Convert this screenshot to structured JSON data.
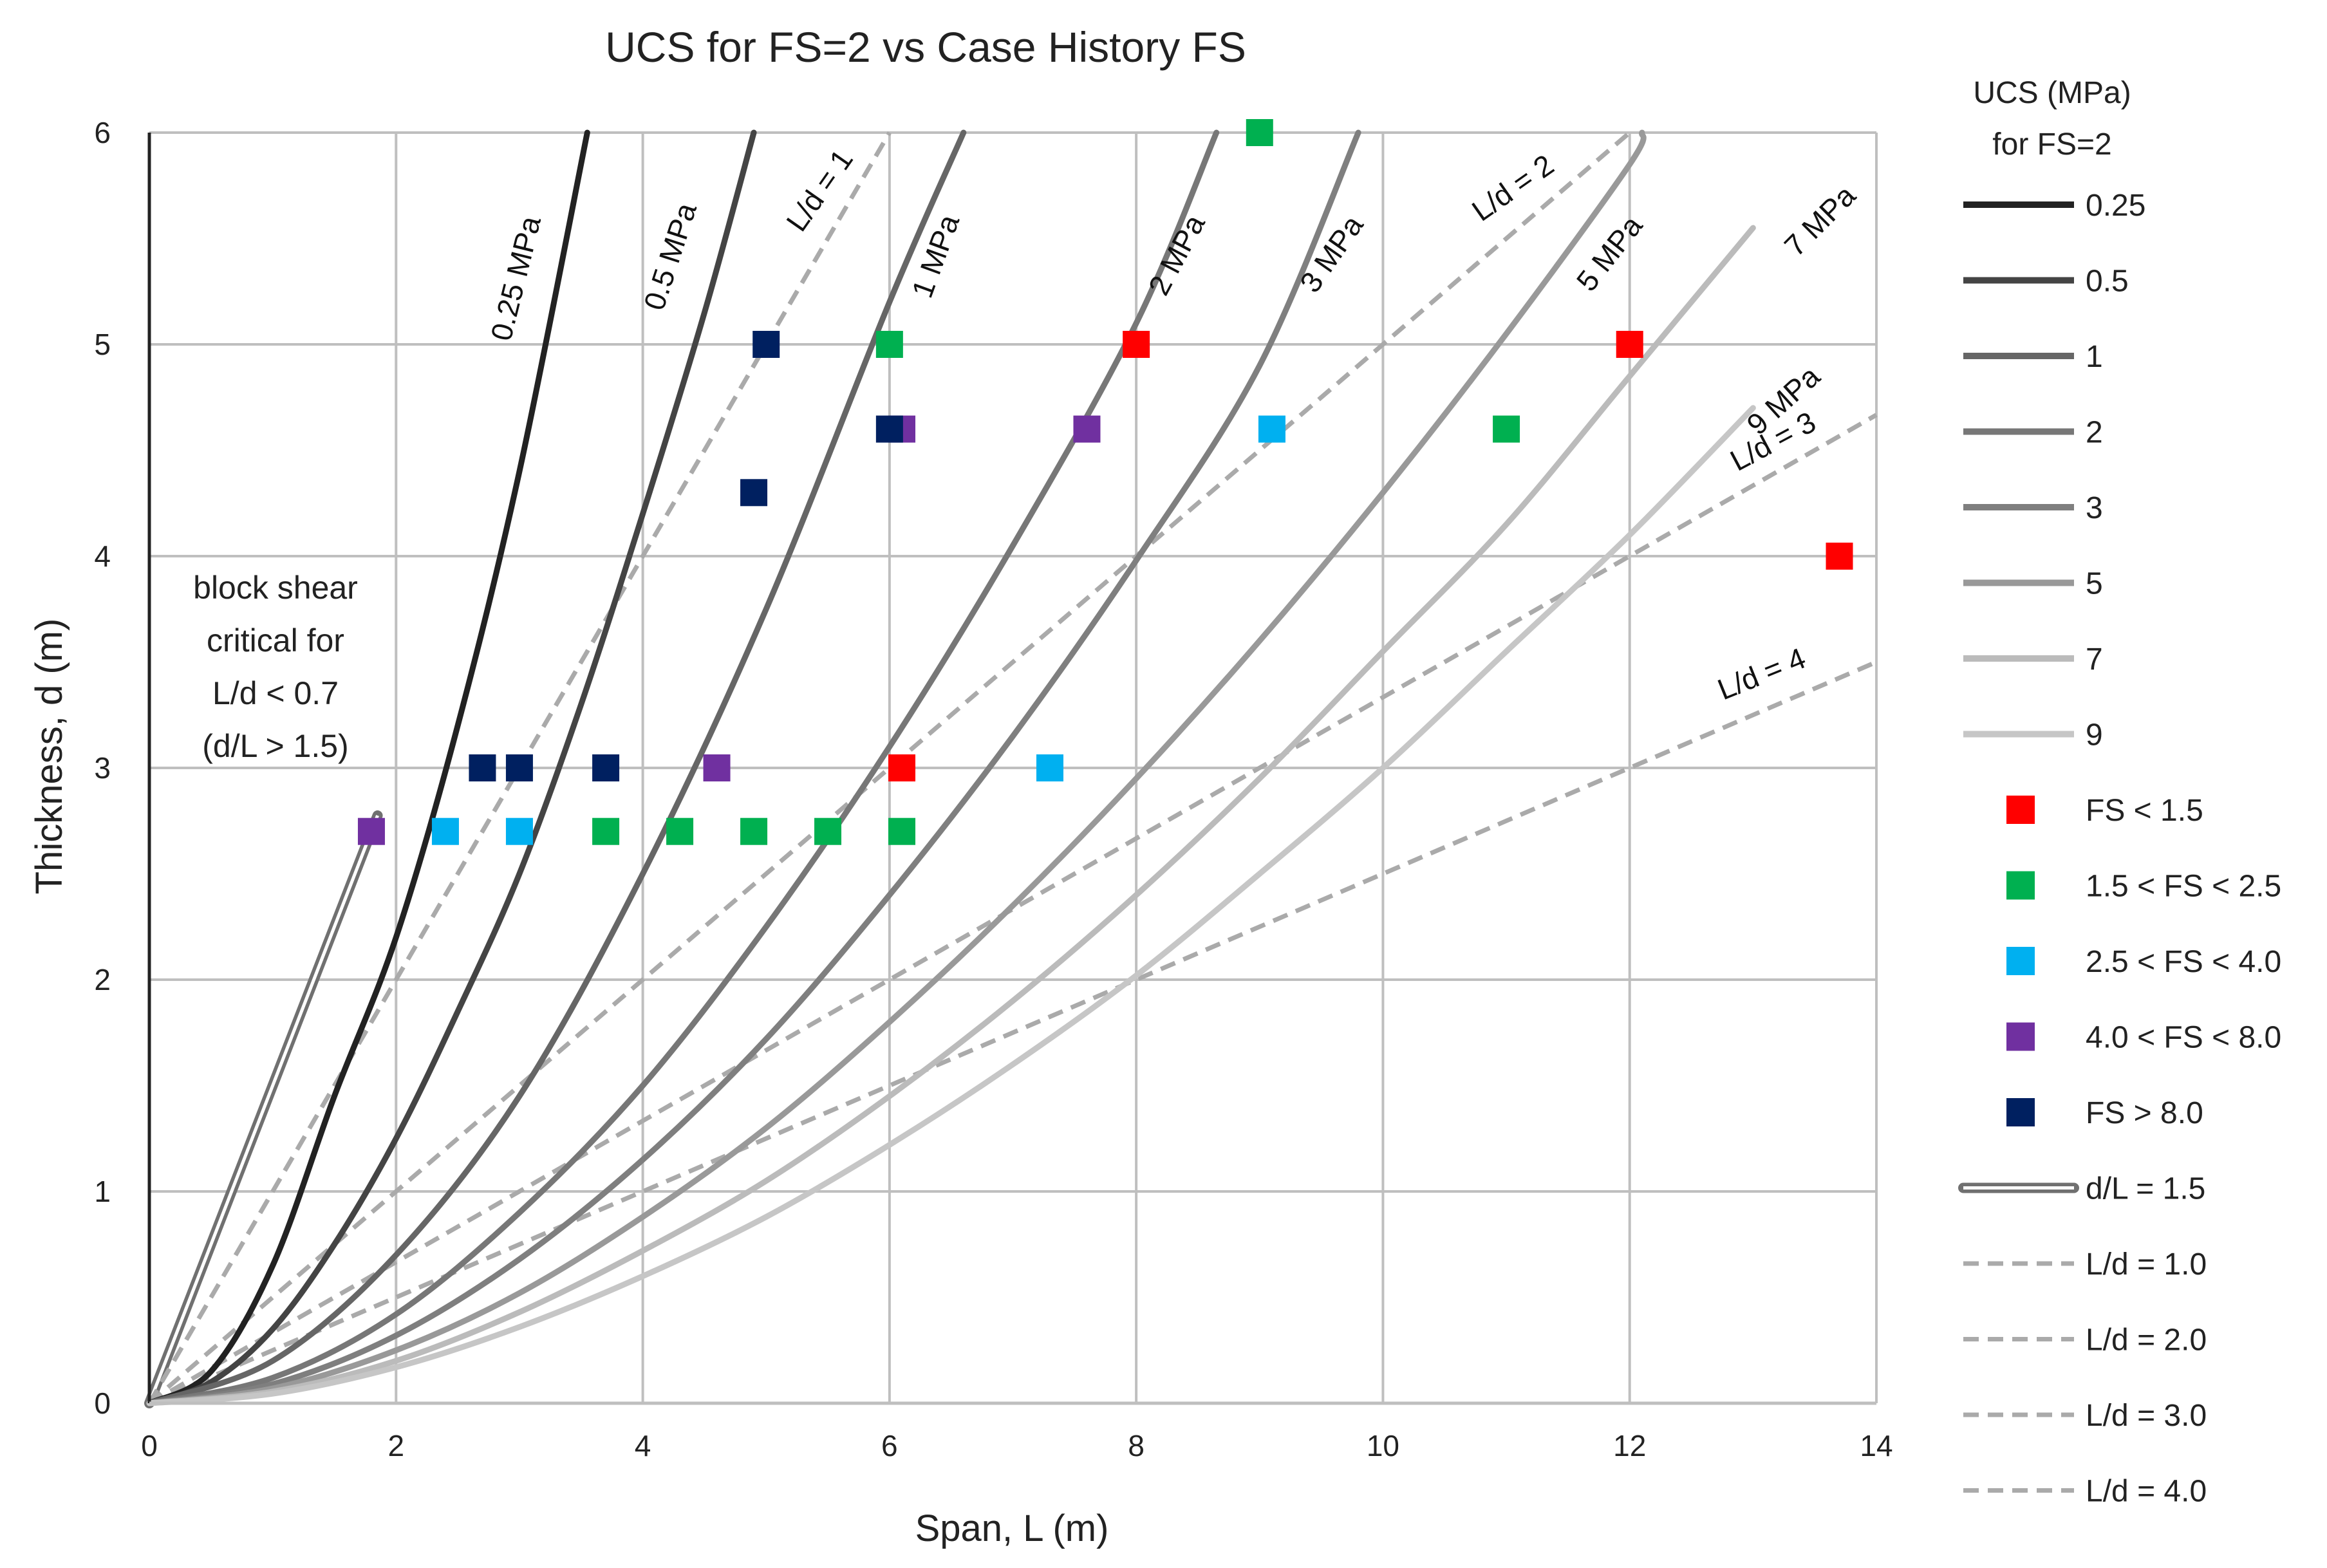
{
  "chart_data": {
    "type": "scatter",
    "title": "UCS for FS=2 vs Case History FS",
    "xlabel": "Span, L (m)",
    "ylabel": "Thickness, d (m)",
    "xlim": [
      0,
      14
    ],
    "ylim": [
      0,
      6
    ],
    "x_ticks": [
      "0",
      "2",
      "4",
      "6",
      "8",
      "10",
      "12",
      "14"
    ],
    "y_ticks": [
      "0",
      "1",
      "2",
      "3",
      "4",
      "5",
      "6"
    ],
    "grid": true,
    "legend_position": "right",
    "legend_title": [
      "UCS (MPa)",
      "for FS=2"
    ],
    "ucs_curves": [
      {
        "name": "0.25",
        "label": "0.25 MPa",
        "color": "#222222",
        "points": [
          [
            0,
            0
          ],
          [
            0.5,
            0.15
          ],
          [
            1,
            0.65
          ],
          [
            1.5,
            1.45
          ],
          [
            2,
            2.2
          ],
          [
            2.5,
            3.2
          ],
          [
            3,
            4.4
          ],
          [
            3.55,
            6
          ]
        ]
      },
      {
        "name": "0.5",
        "label": "0.5 MPa",
        "color": "#444444",
        "points": [
          [
            0,
            0
          ],
          [
            0.5,
            0.1
          ],
          [
            1,
            0.35
          ],
          [
            1.5,
            0.75
          ],
          [
            2,
            1.25
          ],
          [
            2.5,
            1.85
          ],
          [
            3,
            2.5
          ],
          [
            3.5,
            3.3
          ],
          [
            4,
            4.2
          ],
          [
            4.5,
            5.15
          ],
          [
            4.9,
            6
          ]
        ]
      },
      {
        "name": "1",
        "label": "1 MPa",
        "color": "#666666",
        "points": [
          [
            0,
            0
          ],
          [
            1,
            0.2
          ],
          [
            2,
            0.7
          ],
          [
            3,
            1.45
          ],
          [
            4,
            2.5
          ],
          [
            5,
            3.75
          ],
          [
            6,
            5.2
          ],
          [
            6.6,
            6
          ]
        ]
      },
      {
        "name": "2",
        "label": "2 MPa",
        "color": "#777777",
        "points": [
          [
            0,
            0
          ],
          [
            1,
            0.12
          ],
          [
            2,
            0.42
          ],
          [
            3,
            0.9
          ],
          [
            4,
            1.5
          ],
          [
            5,
            2.25
          ],
          [
            6,
            3.1
          ],
          [
            7,
            4.05
          ],
          [
            8,
            5.1
          ],
          [
            8.65,
            6
          ]
        ]
      },
      {
        "name": "3",
        "label": "3 MPa",
        "color": "#7f7f7f",
        "points": [
          [
            0,
            0
          ],
          [
            1,
            0.09
          ],
          [
            2,
            0.32
          ],
          [
            3,
            0.68
          ],
          [
            4,
            1.15
          ],
          [
            5,
            1.72
          ],
          [
            6,
            2.4
          ],
          [
            7,
            3.15
          ],
          [
            8,
            3.98
          ],
          [
            9,
            4.9
          ],
          [
            9.8,
            6
          ]
        ]
      },
      {
        "name": "5",
        "label": "5 MPa",
        "color": "#999999",
        "points": [
          [
            0,
            0
          ],
          [
            1,
            0.07
          ],
          [
            2,
            0.25
          ],
          [
            3,
            0.52
          ],
          [
            4,
            0.88
          ],
          [
            5,
            1.3
          ],
          [
            6,
            1.8
          ],
          [
            7,
            2.35
          ],
          [
            8,
            2.95
          ],
          [
            9,
            3.6
          ],
          [
            10,
            4.3
          ],
          [
            11,
            5.05
          ],
          [
            12,
            5.85
          ],
          [
            12.1,
            6
          ]
        ]
      },
      {
        "name": "7",
        "label": "7 MPa",
        "color": "#bbbbbb",
        "points": [
          [
            0,
            0
          ],
          [
            1,
            0.055
          ],
          [
            2,
            0.2
          ],
          [
            3,
            0.43
          ],
          [
            4,
            0.72
          ],
          [
            5,
            1.05
          ],
          [
            6,
            1.45
          ],
          [
            7,
            1.9
          ],
          [
            8,
            2.4
          ],
          [
            9,
            2.95
          ],
          [
            10,
            3.55
          ],
          [
            11,
            4.15
          ],
          [
            12,
            4.85
          ],
          [
            13,
            5.55
          ]
        ]
      },
      {
        "name": "9",
        "label": "9 MPa",
        "color": "#c6c6c6",
        "points": [
          [
            0,
            0
          ],
          [
            1,
            0.045
          ],
          [
            2,
            0.17
          ],
          [
            3,
            0.36
          ],
          [
            4,
            0.6
          ],
          [
            5,
            0.88
          ],
          [
            6,
            1.22
          ],
          [
            7,
            1.6
          ],
          [
            8,
            2.02
          ],
          [
            9,
            2.5
          ],
          [
            10,
            3.0
          ],
          [
            11,
            3.55
          ],
          [
            12,
            4.1
          ],
          [
            13,
            4.7
          ]
        ]
      }
    ],
    "block_shear_lines": [
      {
        "name": "d/L = 1.5",
        "color": "#707070",
        "points": [
          [
            0,
            0
          ],
          [
            1.85,
            2.775
          ]
        ]
      }
    ],
    "ld_lines": [
      {
        "name": "L/d = 1.0",
        "label": "L/d = 1",
        "color": "#aaaaaa",
        "points": [
          [
            0,
            0
          ],
          [
            6,
            6
          ]
        ]
      },
      {
        "name": "L/d = 2.0",
        "label": "L/d = 2",
        "color": "#aaaaaa",
        "points": [
          [
            0,
            0
          ],
          [
            12,
            6
          ]
        ]
      },
      {
        "name": "L/d = 3.0",
        "label": "L/d = 3",
        "color": "#aaaaaa",
        "points": [
          [
            0,
            0
          ],
          [
            14,
            4.667
          ]
        ]
      },
      {
        "name": "L/d = 4.0",
        "label": "L/d = 4",
        "color": "#aaaaaa",
        "points": [
          [
            0,
            0
          ],
          [
            14,
            3.5
          ]
        ]
      }
    ],
    "fs_series": [
      {
        "name": "FS  < 1.5",
        "color": "#ff0000",
        "points": [
          [
            8,
            5
          ],
          [
            12,
            5
          ],
          [
            13.7,
            4
          ],
          [
            6.1,
            3
          ]
        ]
      },
      {
        "name": "1.5 < FS < 2.5",
        "color": "#00b050",
        "points": [
          [
            9,
            6
          ],
          [
            6,
            5
          ],
          [
            11,
            4.6
          ],
          [
            3.7,
            2.7
          ],
          [
            4.3,
            2.7
          ],
          [
            4.9,
            2.7
          ],
          [
            5.5,
            2.7
          ],
          [
            6.1,
            2.7
          ]
        ]
      },
      {
        "name": "2.5 < FS < 4.0",
        "color": "#00b0f0",
        "points": [
          [
            9.1,
            4.6
          ],
          [
            7.3,
            3
          ],
          [
            2.4,
            2.7
          ],
          [
            3,
            2.7
          ]
        ]
      },
      {
        "name": "4.0 < FS < 8.0",
        "color": "#7030a0",
        "points": [
          [
            6.1,
            4.6
          ],
          [
            7.6,
            4.6
          ],
          [
            4.6,
            3
          ],
          [
            1.8,
            2.7
          ]
        ]
      },
      {
        "name": "FS > 8.0",
        "color": "#002060",
        "points": [
          [
            5,
            5
          ],
          [
            6,
            4.6
          ],
          [
            4.9,
            4.3
          ],
          [
            2.7,
            3
          ],
          [
            3,
            3
          ],
          [
            3.7,
            3
          ]
        ]
      }
    ],
    "annotation": [
      "block shear",
      "critical for",
      "L/d < 0.7",
      "(d/L > 1.5)"
    ]
  }
}
